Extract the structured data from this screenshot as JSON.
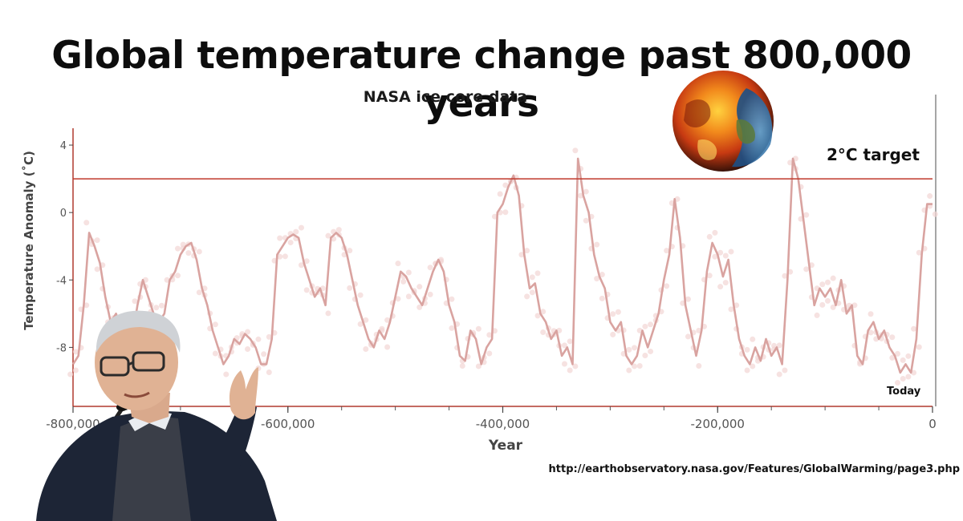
{
  "chart_data": {
    "type": "line",
    "title": "Global temperature change past 800,000 years",
    "subtitle": "NASA  ice core data",
    "xlabel": "Year",
    "ylabel": "Temperature Anomaly (˚C)",
    "xlim": [
      -800000,
      0
    ],
    "ylim": [
      -11.5,
      5
    ],
    "x_ticks": [
      -800000,
      -600000,
      -400000,
      -200000,
      0
    ],
    "x_tick_labels": [
      "-800,000",
      "-600,000",
      "-400,000",
      "-200,000",
      "0"
    ],
    "y_ticks": [
      4,
      0,
      -4,
      -8
    ],
    "y_tick_labels": [
      "4",
      "0",
      "-4",
      "-8"
    ],
    "reference_line": {
      "y": 2,
      "label": "2°C target",
      "color": "#c0392b"
    },
    "annotation_today": "Today",
    "source": "http://earthobservatory.nasa.gov/Features/GlobalWarming/page3.php",
    "series": [
      {
        "color": "#d9a3a0",
        "points": [
          [
            -800000,
            -9.0
          ],
          [
            -795000,
            -8.5
          ],
          [
            -790000,
            -5.5
          ],
          [
            -785000,
            -1.2
          ],
          [
            -780000,
            -2.0
          ],
          [
            -775000,
            -3.0
          ],
          [
            -770000,
            -5.0
          ],
          [
            -765000,
            -6.5
          ],
          [
            -760000,
            -6.0
          ],
          [
            -755000,
            -7.0
          ],
          [
            -750000,
            -6.5
          ],
          [
            -745000,
            -7.5
          ],
          [
            -740000,
            -5.5
          ],
          [
            -735000,
            -4.0
          ],
          [
            -730000,
            -5.0
          ],
          [
            -725000,
            -6.0
          ],
          [
            -720000,
            -6.5
          ],
          [
            -715000,
            -6.0
          ],
          [
            -710000,
            -4.0
          ],
          [
            -705000,
            -3.5
          ],
          [
            -700000,
            -2.5
          ],
          [
            -695000,
            -2.0
          ],
          [
            -690000,
            -1.8
          ],
          [
            -685000,
            -2.8
          ],
          [
            -680000,
            -4.5
          ],
          [
            -675000,
            -5.5
          ],
          [
            -670000,
            -7.0
          ],
          [
            -665000,
            -8.0
          ],
          [
            -660000,
            -9.0
          ],
          [
            -655000,
            -8.5
          ],
          [
            -650000,
            -7.5
          ],
          [
            -645000,
            -7.8
          ],
          [
            -640000,
            -7.2
          ],
          [
            -635000,
            -7.5
          ],
          [
            -630000,
            -8.0
          ],
          [
            -625000,
            -9.0
          ],
          [
            -620000,
            -9.0
          ],
          [
            -615000,
            -7.5
          ],
          [
            -610000,
            -2.5
          ],
          [
            -605000,
            -2.0
          ],
          [
            -600000,
            -1.5
          ],
          [
            -595000,
            -1.3
          ],
          [
            -590000,
            -1.5
          ],
          [
            -585000,
            -3.0
          ],
          [
            -580000,
            -4.0
          ],
          [
            -575000,
            -5.0
          ],
          [
            -570000,
            -4.5
          ],
          [
            -565000,
            -5.5
          ],
          [
            -560000,
            -1.5
          ],
          [
            -555000,
            -1.2
          ],
          [
            -550000,
            -1.5
          ],
          [
            -545000,
            -2.5
          ],
          [
            -540000,
            -4.0
          ],
          [
            -535000,
            -5.5
          ],
          [
            -530000,
            -6.5
          ],
          [
            -525000,
            -7.5
          ],
          [
            -520000,
            -8.0
          ],
          [
            -515000,
            -7.0
          ],
          [
            -510000,
            -7.5
          ],
          [
            -505000,
            -6.5
          ],
          [
            -500000,
            -5.0
          ],
          [
            -495000,
            -3.5
          ],
          [
            -490000,
            -3.8
          ],
          [
            -485000,
            -4.5
          ],
          [
            -480000,
            -5.0
          ],
          [
            -475000,
            -5.5
          ],
          [
            -470000,
            -4.5
          ],
          [
            -465000,
            -3.5
          ],
          [
            -460000,
            -2.8
          ],
          [
            -455000,
            -3.5
          ],
          [
            -450000,
            -5.5
          ],
          [
            -445000,
            -6.5
          ],
          [
            -440000,
            -8.5
          ],
          [
            -435000,
            -8.8
          ],
          [
            -430000,
            -7.0
          ],
          [
            -425000,
            -7.5
          ],
          [
            -420000,
            -9.0
          ],
          [
            -415000,
            -8.0
          ],
          [
            -410000,
            -7.5
          ],
          [
            -405000,
            0.0
          ],
          [
            -400000,
            0.5
          ],
          [
            -395000,
            1.5
          ],
          [
            -390000,
            2.2
          ],
          [
            -385000,
            1.0
          ],
          [
            -380000,
            -2.5
          ],
          [
            -375000,
            -4.5
          ],
          [
            -370000,
            -4.2
          ],
          [
            -365000,
            -6.0
          ],
          [
            -360000,
            -6.5
          ],
          [
            -355000,
            -7.5
          ],
          [
            -350000,
            -7.0
          ],
          [
            -345000,
            -8.5
          ],
          [
            -340000,
            -8.0
          ],
          [
            -335000,
            -9.0
          ],
          [
            -330000,
            3.2
          ],
          [
            -325000,
            1.0
          ],
          [
            -320000,
            0.0
          ],
          [
            -315000,
            -2.5
          ],
          [
            -310000,
            -3.8
          ],
          [
            -305000,
            -4.5
          ],
          [
            -300000,
            -6.5
          ],
          [
            -295000,
            -7.0
          ],
          [
            -290000,
            -6.5
          ],
          [
            -285000,
            -8.5
          ],
          [
            -280000,
            -9.0
          ],
          [
            -275000,
            -8.5
          ],
          [
            -270000,
            -7.0
          ],
          [
            -265000,
            -8.0
          ],
          [
            -260000,
            -7.0
          ],
          [
            -255000,
            -6.0
          ],
          [
            -250000,
            -4.0
          ],
          [
            -245000,
            -2.5
          ],
          [
            -240000,
            0.8
          ],
          [
            -235000,
            -1.5
          ],
          [
            -230000,
            -5.5
          ],
          [
            -225000,
            -7.0
          ],
          [
            -220000,
            -8.5
          ],
          [
            -215000,
            -7.0
          ],
          [
            -210000,
            -3.5
          ],
          [
            -205000,
            -1.8
          ],
          [
            -200000,
            -2.5
          ],
          [
            -195000,
            -3.8
          ],
          [
            -190000,
            -2.8
          ],
          [
            -185000,
            -5.5
          ],
          [
            -180000,
            -7.5
          ],
          [
            -175000,
            -8.5
          ],
          [
            -170000,
            -9.0
          ],
          [
            -165000,
            -8.0
          ],
          [
            -160000,
            -8.8
          ],
          [
            -155000,
            -7.5
          ],
          [
            -150000,
            -8.5
          ],
          [
            -145000,
            -8.0
          ],
          [
            -140000,
            -9.0
          ],
          [
            -135000,
            -4.0
          ],
          [
            -130000,
            3.2
          ],
          [
            -125000,
            2.0
          ],
          [
            -120000,
            -0.5
          ],
          [
            -115000,
            -3.0
          ],
          [
            -110000,
            -5.5
          ],
          [
            -105000,
            -4.5
          ],
          [
            -100000,
            -5.0
          ],
          [
            -95000,
            -4.5
          ],
          [
            -90000,
            -5.5
          ],
          [
            -85000,
            -4.0
          ],
          [
            -80000,
            -6.0
          ],
          [
            -75000,
            -5.5
          ],
          [
            -70000,
            -8.5
          ],
          [
            -65000,
            -9.0
          ],
          [
            -60000,
            -7.0
          ],
          [
            -55000,
            -6.5
          ],
          [
            -50000,
            -7.5
          ],
          [
            -45000,
            -7.0
          ],
          [
            -40000,
            -8.0
          ],
          [
            -35000,
            -8.5
          ],
          [
            -30000,
            -9.5
          ],
          [
            -25000,
            -9.0
          ],
          [
            -20000,
            -9.5
          ],
          [
            -15000,
            -7.5
          ],
          [
            -10000,
            -2.5
          ],
          [
            -5000,
            0.5
          ],
          [
            0,
            0.5
          ]
        ]
      }
    ]
  }
}
